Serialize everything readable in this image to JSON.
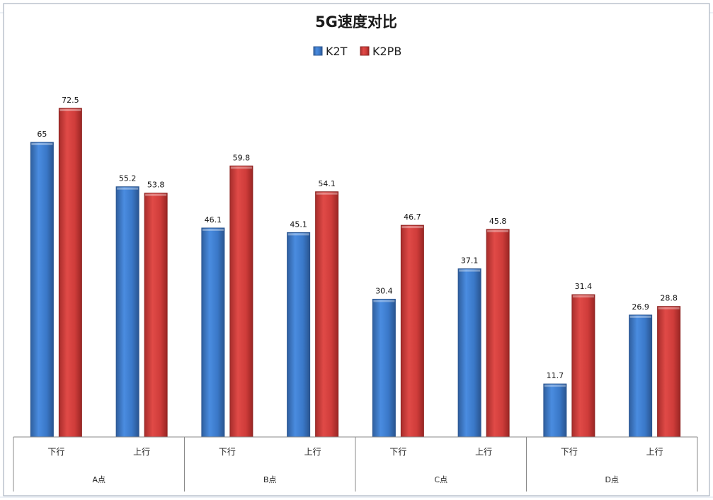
{
  "chart_data": {
    "type": "bar",
    "title": "5G速度对比",
    "groups": [
      "A点",
      "B点",
      "C点",
      "D点"
    ],
    "categories": [
      "下行",
      "上行",
      "下行",
      "上行",
      "下行",
      "上行",
      "下行",
      "上行"
    ],
    "series": [
      {
        "name": "K2T",
        "values": [
          65,
          55.2,
          46.1,
          45.1,
          30.4,
          37.1,
          11.7,
          26.9
        ]
      },
      {
        "name": "K2PB",
        "values": [
          72.5,
          53.8,
          59.8,
          54.1,
          46.7,
          45.8,
          31.4,
          28.8
        ]
      }
    ],
    "colors": {
      "K2T": "#3f7fd0",
      "K2PB": "#d9403e"
    },
    "ylim": [
      0,
      80
    ],
    "grid": false,
    "legend_position": "top-center",
    "xlabel": "",
    "ylabel": ""
  }
}
